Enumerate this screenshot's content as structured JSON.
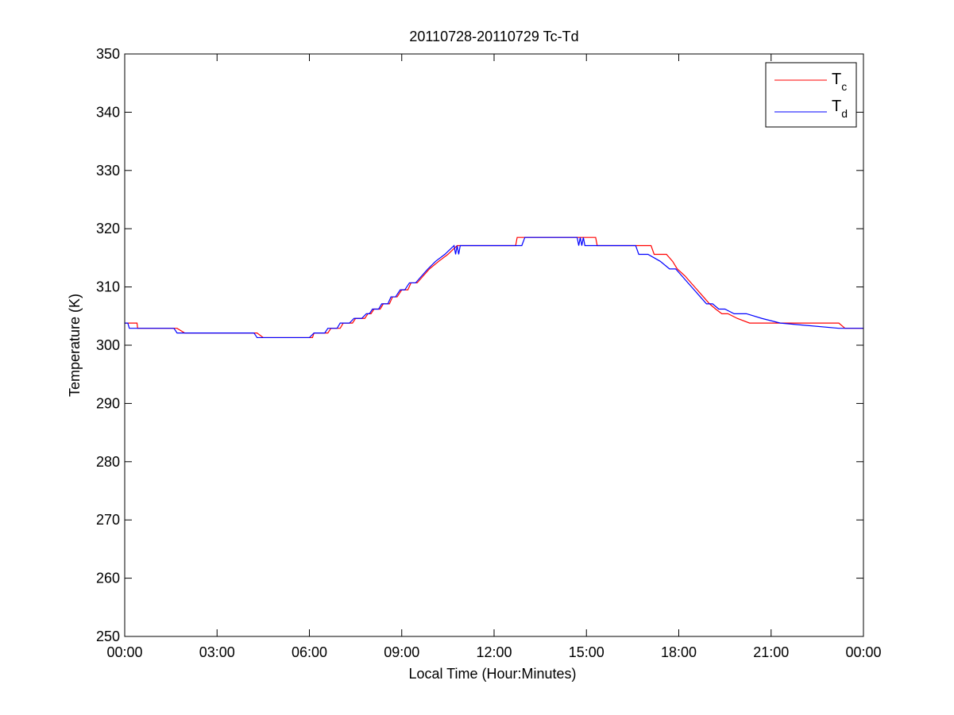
{
  "chart_data": {
    "type": "line",
    "title": "20110728-20110729 Tc-Td",
    "xlabel": "Local Time (Hour:Minutes)",
    "ylabel": "Temperature (K)",
    "xlim": [
      0,
      24
    ],
    "ylim": [
      250,
      350
    ],
    "x_ticks": [
      0,
      3,
      6,
      9,
      12,
      15,
      18,
      21,
      24
    ],
    "x_tick_labels": [
      "00:00",
      "03:00",
      "06:00",
      "09:00",
      "12:00",
      "15:00",
      "18:00",
      "21:00",
      "00:00"
    ],
    "y_ticks": [
      250,
      260,
      270,
      280,
      290,
      300,
      310,
      320,
      330,
      340,
      350
    ],
    "legend_position": "top-right",
    "series": [
      {
        "name": "Tc",
        "legend_main": "T",
        "legend_sub": "c",
        "color": "#ff0000",
        "x": [
          0.0,
          0.4,
          0.42,
          1.7,
          1.95,
          4.3,
          4.5,
          6.1,
          6.15,
          6.6,
          6.7,
          7.0,
          7.1,
          7.4,
          7.5,
          7.8,
          7.9,
          8.0,
          8.1,
          8.3,
          8.4,
          8.6,
          8.7,
          8.85,
          9.0,
          9.2,
          9.3,
          9.5,
          9.7,
          9.9,
          10.2,
          10.5,
          10.8,
          12.7,
          12.75,
          15.3,
          15.35,
          17.1,
          17.2,
          17.6,
          17.8,
          17.95,
          18.2,
          18.4,
          18.6,
          18.8,
          19.0,
          19.2,
          19.4,
          19.6,
          19.9,
          20.3,
          20.8,
          21.5,
          23.2,
          23.4,
          24.0
        ],
        "y": [
          303.8,
          303.8,
          302.9,
          302.9,
          302.1,
          302.1,
          301.3,
          301.3,
          302.1,
          302.1,
          302.9,
          302.9,
          303.8,
          303.8,
          304.6,
          304.6,
          305.4,
          305.4,
          306.2,
          306.2,
          307.1,
          307.1,
          308.3,
          308.3,
          309.5,
          309.5,
          310.7,
          310.7,
          311.9,
          313.1,
          314.4,
          315.6,
          317.1,
          317.1,
          318.5,
          318.5,
          317.1,
          317.1,
          315.6,
          315.6,
          314.4,
          313.1,
          311.9,
          310.7,
          309.5,
          308.3,
          307.1,
          306.2,
          305.4,
          305.4,
          304.6,
          303.8,
          303.8,
          303.8,
          303.8,
          302.9,
          302.9
        ]
      },
      {
        "name": "Td",
        "legend_main": "T",
        "legend_sub": "d",
        "color": "#0000ff",
        "x": [
          0.0,
          0.1,
          0.15,
          1.6,
          1.7,
          4.2,
          4.3,
          6.0,
          6.15,
          6.5,
          6.6,
          6.9,
          7.0,
          7.3,
          7.45,
          7.7,
          7.85,
          7.95,
          8.05,
          8.25,
          8.35,
          8.55,
          8.65,
          8.8,
          8.95,
          9.1,
          9.25,
          9.45,
          9.65,
          9.85,
          10.1,
          10.4,
          10.7,
          10.75,
          10.8,
          10.85,
          10.9,
          12.9,
          13.0,
          14.7,
          14.75,
          14.8,
          14.85,
          14.9,
          14.95,
          16.6,
          16.7,
          17.0,
          17.4,
          17.7,
          17.9,
          18.1,
          18.3,
          18.5,
          18.7,
          18.9,
          19.1,
          19.3,
          19.5,
          19.8,
          20.2,
          20.7,
          21.3,
          23.2,
          24.0
        ],
        "y": [
          303.8,
          303.8,
          302.9,
          302.9,
          302.1,
          302.1,
          301.3,
          301.3,
          302.1,
          302.1,
          302.9,
          302.9,
          303.8,
          303.8,
          304.6,
          304.6,
          305.4,
          305.4,
          306.2,
          306.2,
          307.1,
          307.1,
          308.3,
          308.3,
          309.5,
          309.5,
          310.7,
          310.7,
          311.9,
          313.1,
          314.4,
          315.6,
          317.1,
          315.6,
          317.1,
          315.6,
          317.1,
          317.1,
          318.5,
          318.5,
          317.1,
          318.5,
          317.1,
          318.5,
          317.1,
          317.1,
          315.6,
          315.6,
          314.4,
          313.1,
          313.1,
          311.9,
          310.7,
          309.5,
          308.3,
          307.1,
          307.1,
          306.2,
          306.2,
          305.4,
          305.4,
          304.6,
          303.8,
          302.9,
          302.9
        ]
      }
    ]
  }
}
